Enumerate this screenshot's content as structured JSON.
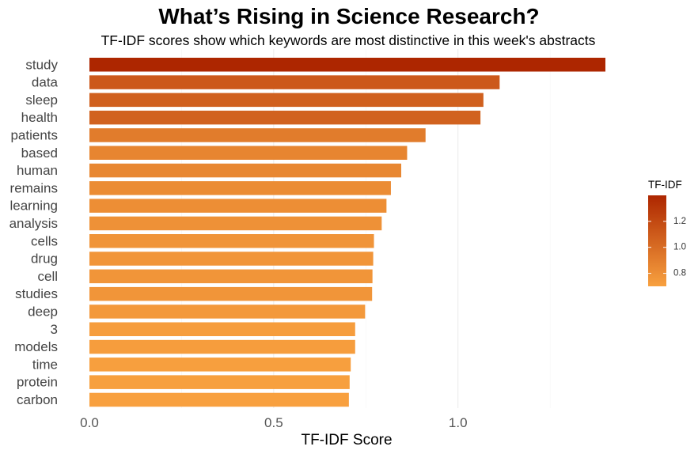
{
  "chart_data": {
    "type": "bar",
    "orientation": "horizontal",
    "title": "What’s Rising in Science Research?",
    "subtitle": "TF-IDF scores show which keywords are most distinctive in this week's abstracts",
    "xlabel": "TF-IDF Score",
    "ylabel": "",
    "xlim": [
      0,
      1.44
    ],
    "x_ticks": [
      {
        "value": 0.0,
        "label": "0.0"
      },
      {
        "value": 0.5,
        "label": "0.5"
      },
      {
        "value": 1.0,
        "label": "1.0"
      }
    ],
    "grid": "vertical major lines",
    "categories": [
      "study",
      "data",
      "sleep",
      "health",
      "patients",
      "based",
      "human",
      "remains",
      "learning",
      "analysis",
      "cells",
      "drug",
      "cell",
      "studies",
      "deep",
      "3",
      "models",
      "time",
      "protein",
      "carbon"
    ],
    "values": [
      1.4,
      1.113,
      1.069,
      1.061,
      0.912,
      0.862,
      0.846,
      0.818,
      0.806,
      0.793,
      0.772,
      0.77,
      0.768,
      0.767,
      0.748,
      0.721,
      0.721,
      0.709,
      0.706,
      0.704
    ],
    "legend": {
      "title": "TF-IDF",
      "placement": "right",
      "type": "continuous colorbar",
      "range": [
        0.7,
        1.4
      ],
      "ticks": [
        {
          "value": 0.8,
          "label": "0.8"
        },
        {
          "value": 1.0,
          "label": "1.0"
        },
        {
          "value": 1.2,
          "label": "1.2"
        }
      ],
      "color_low": "#f8a13f",
      "color_high": "#ad2600"
    }
  }
}
